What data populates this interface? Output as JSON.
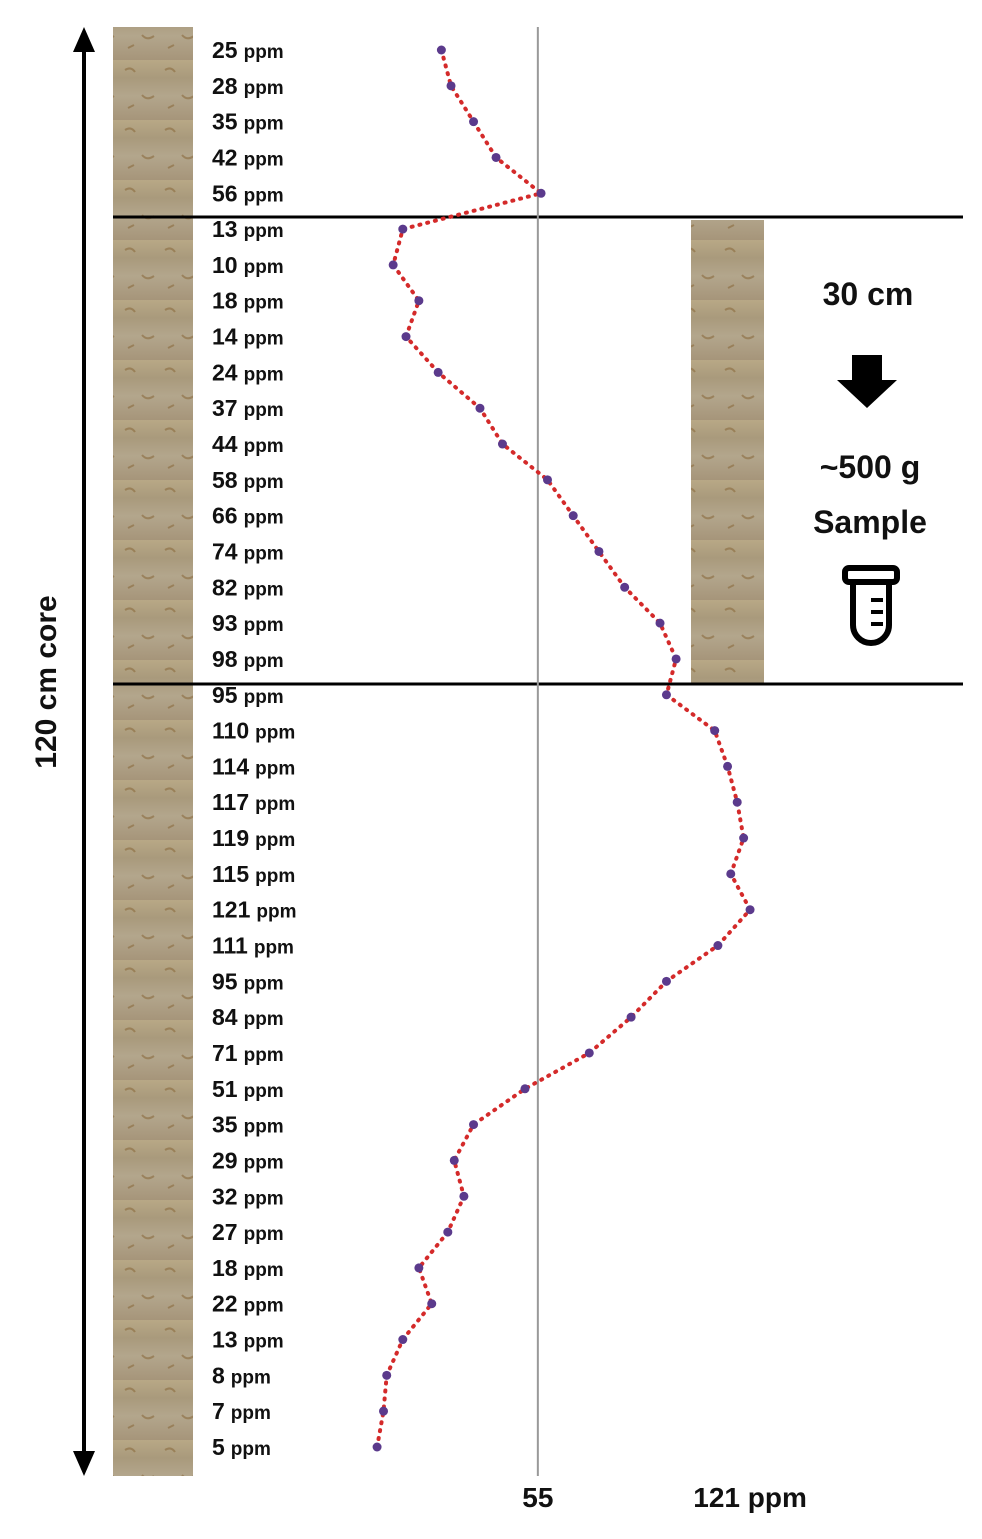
{
  "chart_data": {
    "type": "profile",
    "unit": "ppm",
    "values": [
      25,
      28,
      35,
      42,
      56,
      13,
      10,
      18,
      14,
      24,
      37,
      44,
      58,
      66,
      74,
      82,
      93,
      98,
      95,
      110,
      114,
      117,
      119,
      115,
      121,
      111,
      95,
      84,
      71,
      51,
      35,
      29,
      32,
      27,
      18,
      22,
      13,
      8,
      7,
      5
    ],
    "xlim": [
      0,
      130
    ],
    "xticks": [
      55,
      {
        "value": 121,
        "label": "121 ppm"
      }
    ],
    "reference_line": 55,
    "line_color": "#d42a2a",
    "marker_color": "#5b3a8c",
    "annotations": {
      "core": "120 cm core",
      "section": "30 cm",
      "mass": "~500 g",
      "sample": "Sample"
    }
  }
}
